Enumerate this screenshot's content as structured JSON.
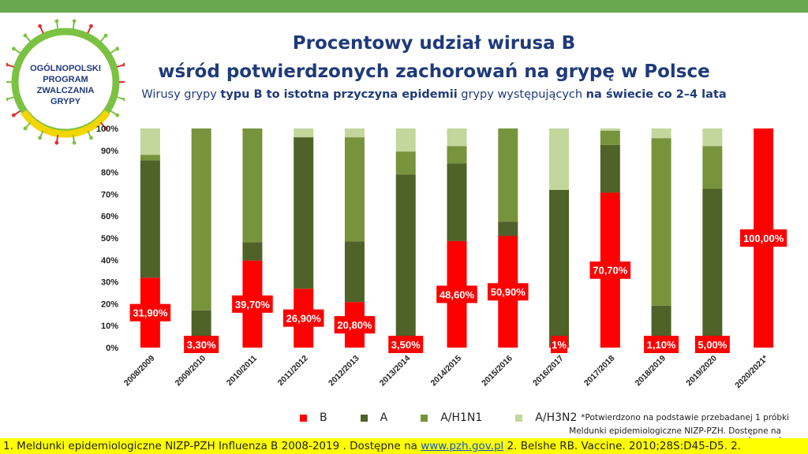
{
  "logo": {
    "lines": [
      "OGÓLNOPOLSKI",
      "PROGRAM",
      "ZWALCZANIA",
      "GRYPY"
    ]
  },
  "header": {
    "title_line1": "Procentowy udział wirusa B",
    "title_line2": "wśród potwierdzonych zachorowań na grypę w Polsce",
    "subtitle_parts": [
      {
        "text": "Wirusy grypy ",
        "bold": false
      },
      {
        "text": "typu B to istotna przyczyna epidemii",
        "bold": true
      },
      {
        "text": " grypy występujących ",
        "bold": false
      },
      {
        "text": "na świecie co 2–4 lata",
        "bold": true
      }
    ]
  },
  "chart_data": {
    "type": "bar",
    "stacked": true,
    "categories": [
      "2008/2009",
      "2009/2010",
      "2010/2011",
      "2011/2012",
      "2012/2013",
      "2013/2014",
      "2014/2015",
      "2015/2016",
      "2016/2017",
      "2017/2018",
      "2018/2019",
      "2019/2020",
      "2020/2021*"
    ],
    "y_ticks": [
      "0%",
      "10%",
      "20%",
      "30%",
      "40%",
      "50%",
      "60%",
      "70%",
      "80%",
      "90%",
      "100%"
    ],
    "ylim": [
      0,
      100
    ],
    "series": [
      {
        "name": "B",
        "color": "#ff0000",
        "values": [
          31.9,
          3.3,
          39.7,
          26.9,
          20.8,
          3.5,
          48.6,
          50.9,
          1,
          70.7,
          1.1,
          5.0,
          100
        ]
      },
      {
        "name": "A",
        "color": "#4f6228",
        "values": [
          53.6,
          13.7,
          8.3,
          69.1,
          27.7,
          75.5,
          35.4,
          6.6,
          71.0,
          21.8,
          18.0,
          67.5,
          0
        ]
      },
      {
        "name": "A/H1N1",
        "color": "#77933c",
        "values": [
          2.5,
          83.0,
          52.0,
          0,
          47.5,
          10.5,
          8.0,
          42.5,
          0,
          6.5,
          76.5,
          19.5,
          0
        ]
      },
      {
        "name": "A/H3N2",
        "color": "#c3d69b",
        "values": [
          12.0,
          0,
          0,
          4.0,
          4.0,
          10.5,
          8.0,
          0,
          28.0,
          1.0,
          4.4,
          8.0,
          0
        ]
      }
    ],
    "data_labels": [
      "31,90%",
      "3,30%",
      "39,70%",
      "26,90%",
      "20,80%",
      "3,50%",
      "48,60%",
      "50,90%",
      "1%",
      "70,70%",
      "1,10%",
      "5,00%",
      "100,00%"
    ],
    "grid": true,
    "legend": "bottom"
  },
  "legend_items": [
    "B",
    "A",
    "A/H1N1",
    "A/H3N2"
  ],
  "notes": {
    "asterisk_note": "*Potwierdzono na podstawie przebadanej 1 próbki",
    "source_prefix": "Meldunki epidemiologiczne NIZP-PZH. Dostępne na ",
    "source_link": "www.pzh.gov.pl"
  },
  "footer": {
    "prefix": "1. Meldunki epidemiologiczne NIZP-PZH Influenza B 2008-2019 . Dostępne na ",
    "link": "www.pzh.gov.pl",
    "suffix": " 2. Belshe RB. Vaccine. 2010;28S:D45-D5. 2."
  }
}
